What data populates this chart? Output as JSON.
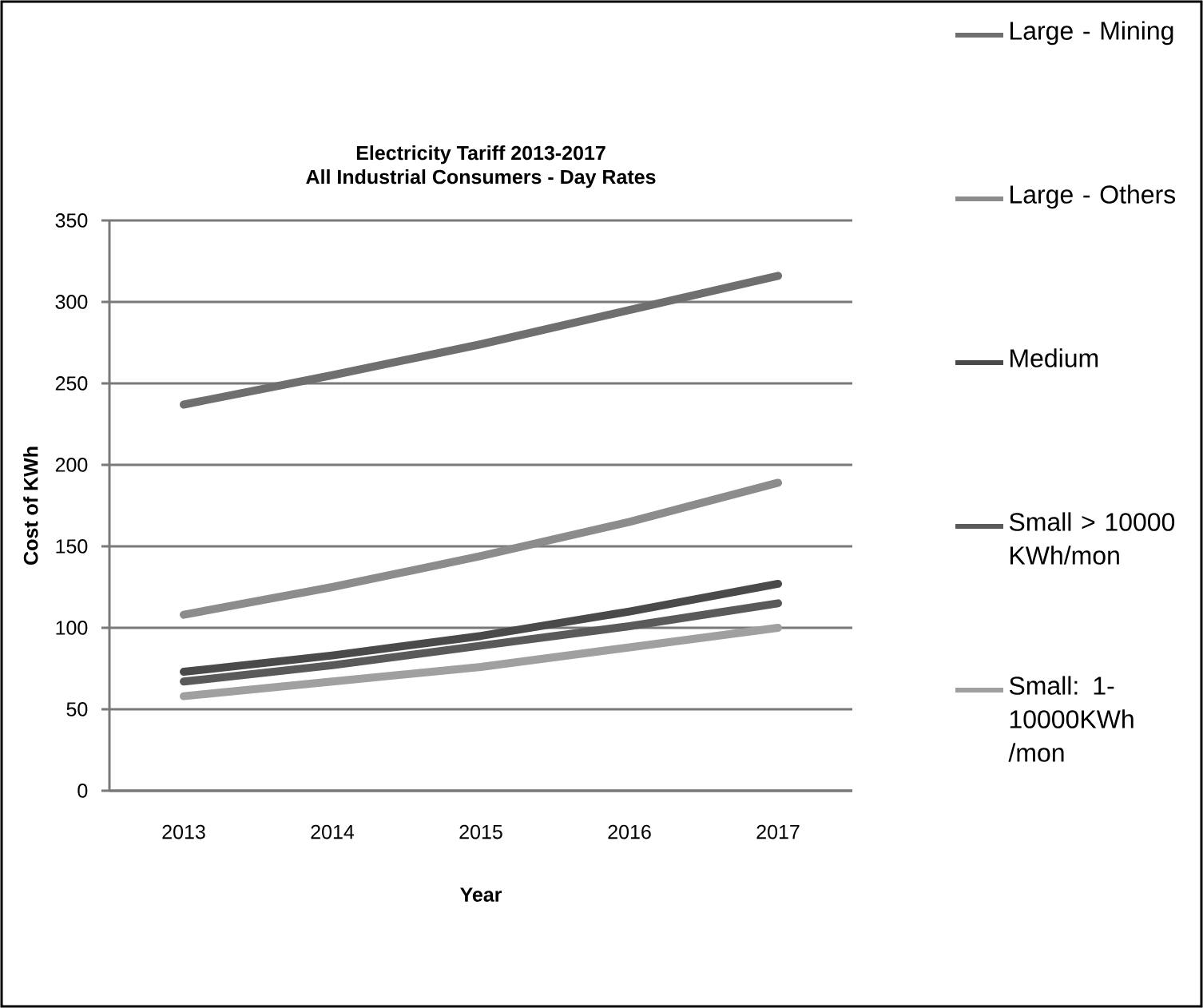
{
  "chart_data": {
    "type": "line",
    "title": "Electricity Tariff 2013-2017",
    "subtitle": "All Industrial Consumers - Day Rates",
    "xlabel": "Year",
    "ylabel": "Cost of KWh",
    "categories": [
      "2013",
      "2014",
      "2015",
      "2016",
      "2017"
    ],
    "series": [
      {
        "name": "Large - Mining",
        "color": "#6f6f6f",
        "values": [
          237,
          255,
          274,
          295,
          316
        ]
      },
      {
        "name": "Large - Others",
        "color": "#8c8c8c",
        "values": [
          108,
          125,
          144,
          165,
          189
        ]
      },
      {
        "name": "Medium",
        "color": "#4a4a4a",
        "values": [
          73,
          83,
          95,
          110,
          127
        ]
      },
      {
        "name": "Small > 10000 KWh/mon",
        "color": "#5a5a5a",
        "values": [
          67,
          77,
          89,
          101,
          115
        ]
      },
      {
        "name": "Small: 1-10000KWh /mon",
        "color": "#a0a0a0",
        "values": [
          58,
          67,
          76,
          88,
          100
        ]
      }
    ],
    "ylim": [
      0,
      350
    ],
    "yticks": [
      0,
      50,
      100,
      150,
      200,
      250,
      300,
      350
    ],
    "grid": "y",
    "legend": "right",
    "marker": "none",
    "line_style": "solid"
  }
}
